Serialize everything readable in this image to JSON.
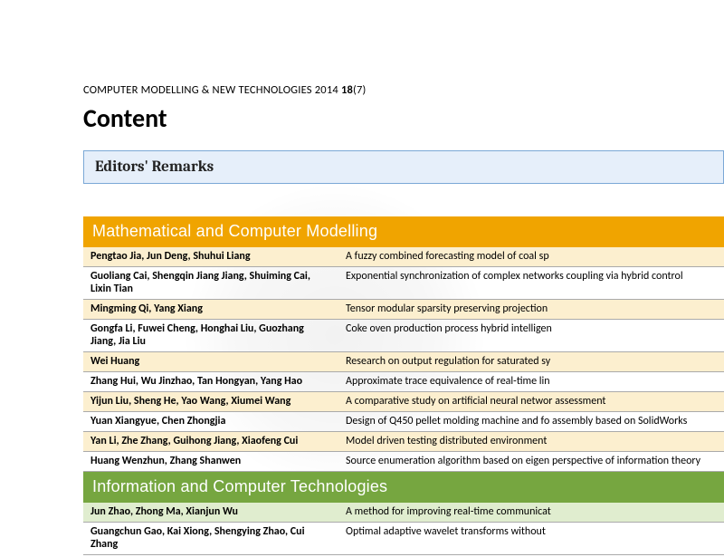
{
  "journal": {
    "name": "COMPUTER MODELLING & NEW TECHNOLOGIES 2014",
    "volume": "18",
    "issue": "(7)"
  },
  "content_title": "Content",
  "remarks_label": "Editors' Remarks",
  "sections": [
    {
      "id": "math",
      "header": "Mathematical and Computer Modelling",
      "header_color": "#f0a400",
      "alt_row_color": "#fcefcf",
      "rows": [
        {
          "authors": "Pengtao Jia, Jun Deng, Shuhui Liang",
          "title": "A fuzzy combined forecasting model of coal sp"
        },
        {
          "authors": "Guoliang Cai, Shengqin Jiang Jiang, Shuiming Cai, Lixin Tian",
          "title": "Exponential synchronization of complex networks coupling via hybrid control"
        },
        {
          "authors": "Mingming Qi, Yang Xiang",
          "title": "Tensor modular sparsity preserving projection"
        },
        {
          "authors": "Gongfa Li, Fuwei Cheng, Honghai Liu, Guozhang Jiang, Jia Liu",
          "title": "Coke oven production process hybrid intelligen"
        },
        {
          "authors": "Wei Huang",
          "title": "Research on output regulation for saturated sy"
        },
        {
          "authors": "Zhang Hui, Wu Jinzhao, Tan Hongyan, Yang Hao",
          "title": "Approximate trace equivalence of real-time lin"
        },
        {
          "authors": "Yijun Liu, Sheng He, Yao Wang, Xiumei Wang",
          "title": "A comparative study on artificial neural networ assessment"
        },
        {
          "authors": "Yuan Xiangyue, Chen Zhongjia",
          "title": "Design of Q450 pellet molding machine and fo assembly based on SolidWorks"
        },
        {
          "authors": "Yan Li, Zhe Zhang, Guihong Jiang, Xiaofeng Cui",
          "title": "Model driven testing distributed environment"
        },
        {
          "authors": "Huang Wenzhun, Zhang Shanwen",
          "title": "Source enumeration algorithm based on eigen perspective of information theory"
        }
      ]
    },
    {
      "id": "info",
      "header": "Information and Computer Technologies",
      "header_color": "#76a640",
      "alt_row_color": "#e0edcf",
      "rows": [
        {
          "authors": "Jun Zhao, Zhong Ma, Xianjun Wu",
          "title": "A method for improving real-time communicat"
        },
        {
          "authors": "Guangchun Gao, Kai Xiong, Shengying Zhao, Cui Zhang",
          "title": "Optimal adaptive wavelet transforms without"
        }
      ]
    }
  ]
}
